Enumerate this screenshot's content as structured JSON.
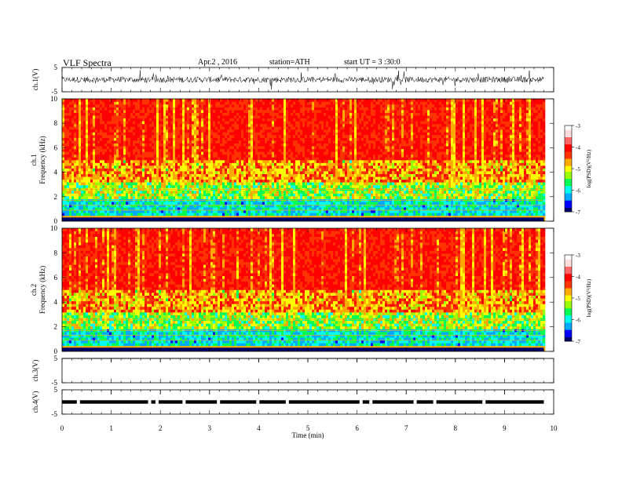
{
  "header": {
    "title": "VLF Spectra",
    "date": "Apr.2 , 2016",
    "station": "station=ATH",
    "start": "start UT = 3 :30:0"
  },
  "colors": {
    "colormap": [
      "#000066",
      "#0000ff",
      "#00aaff",
      "#00ffee",
      "#00ff55",
      "#99ff00",
      "#ffff00",
      "#ffaa00",
      "#ff3300",
      "#ff0000",
      "#ff6666",
      "#ffdddd",
      "#ffffff"
    ]
  },
  "chart_data": [
    {
      "type": "line",
      "panel": "ch1-waveform",
      "ylabel": "ch.1(V)",
      "yticks": [
        "5",
        "-5"
      ],
      "ylim": [
        -5,
        5
      ],
      "xlim": [
        0,
        10
      ],
      "data_extent_min": 9.8,
      "baseline": 0,
      "amplitude": 1.2
    },
    {
      "type": "heatmap",
      "panel": "ch1-spectrogram",
      "ylabel_channel": "ch.1",
      "ylabel": "Frequency (kHz)",
      "yticks": [
        "0",
        "2",
        "4",
        "6",
        "8",
        "10"
      ],
      "ylim": [
        0,
        10
      ],
      "xlim": [
        0,
        10
      ],
      "data_extent_min": 9.8,
      "z_description": "high PSD above ~4 kHz, decreasing toward low frequencies",
      "colorbar": {
        "label": "log(PSD)(V²/Hz)",
        "ticks": [
          "-3",
          "-4",
          "-5",
          "-6",
          "-7"
        ],
        "range": [
          -7,
          -3
        ]
      }
    },
    {
      "type": "heatmap",
      "panel": "ch2-spectrogram",
      "ylabel_channel": "ch.2",
      "ylabel": "Frequency (kHz)",
      "yticks": [
        "0",
        "2",
        "4",
        "6",
        "8",
        "10"
      ],
      "ylim": [
        0,
        10
      ],
      "xlim": [
        0,
        10
      ],
      "data_extent_min": 9.8,
      "z_description": "high PSD above ~4 kHz, decreasing toward low frequencies",
      "colorbar": {
        "label": "log(PSD)(V²/Hz)",
        "ticks": [
          "-3",
          "-4",
          "-5",
          "-6",
          "-7"
        ],
        "range": [
          -7,
          -3
        ]
      }
    },
    {
      "type": "line",
      "panel": "ch3-waveform",
      "ylabel": "ch.3(V)",
      "yticks": [
        "5",
        "-5"
      ],
      "ylim": [
        -5,
        5
      ],
      "xlim": [
        0,
        10
      ],
      "data_extent_min": 9.8,
      "baseline": 5,
      "amplitude": 0
    },
    {
      "type": "line",
      "panel": "ch4-waveform",
      "ylabel": "ch.4(V)",
      "yticks": [
        "5",
        "-5"
      ],
      "ylim": [
        -5,
        5
      ],
      "xlim": [
        0,
        10
      ],
      "data_extent_min": 9.8,
      "baseline": 0,
      "amplitude": 0.3
    }
  ],
  "xaxis": {
    "label": "Time (min)",
    "ticks": [
      "0",
      "1",
      "2",
      "3",
      "4",
      "5",
      "6",
      "7",
      "8",
      "9",
      "10"
    ],
    "range": [
      0,
      10
    ]
  }
}
